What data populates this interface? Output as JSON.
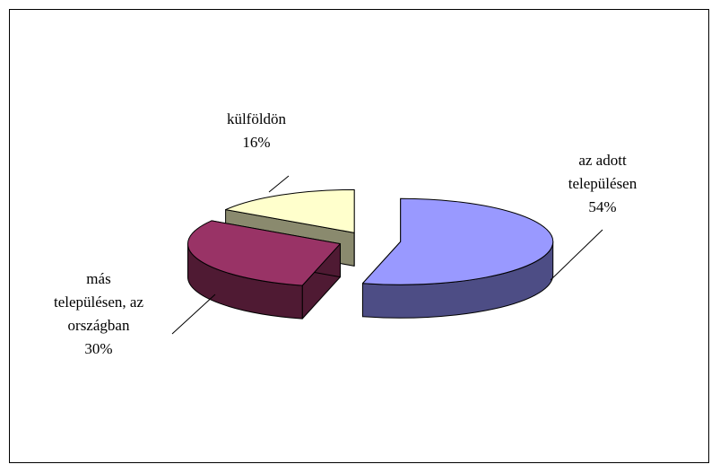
{
  "chart_data": {
    "type": "pie",
    "categories": [
      "az adott\ntelepülésen",
      "más\ntelepülésen, az\nországban",
      "külföldön"
    ],
    "values": [
      54,
      30,
      16
    ],
    "value_labels": [
      "54%",
      "30%",
      "16%"
    ],
    "colors": [
      "#9999ff",
      "#993366",
      "#ffffcc"
    ],
    "side_colors": [
      "#4d4d85",
      "#4f1a33",
      "#8a8a6e"
    ]
  }
}
